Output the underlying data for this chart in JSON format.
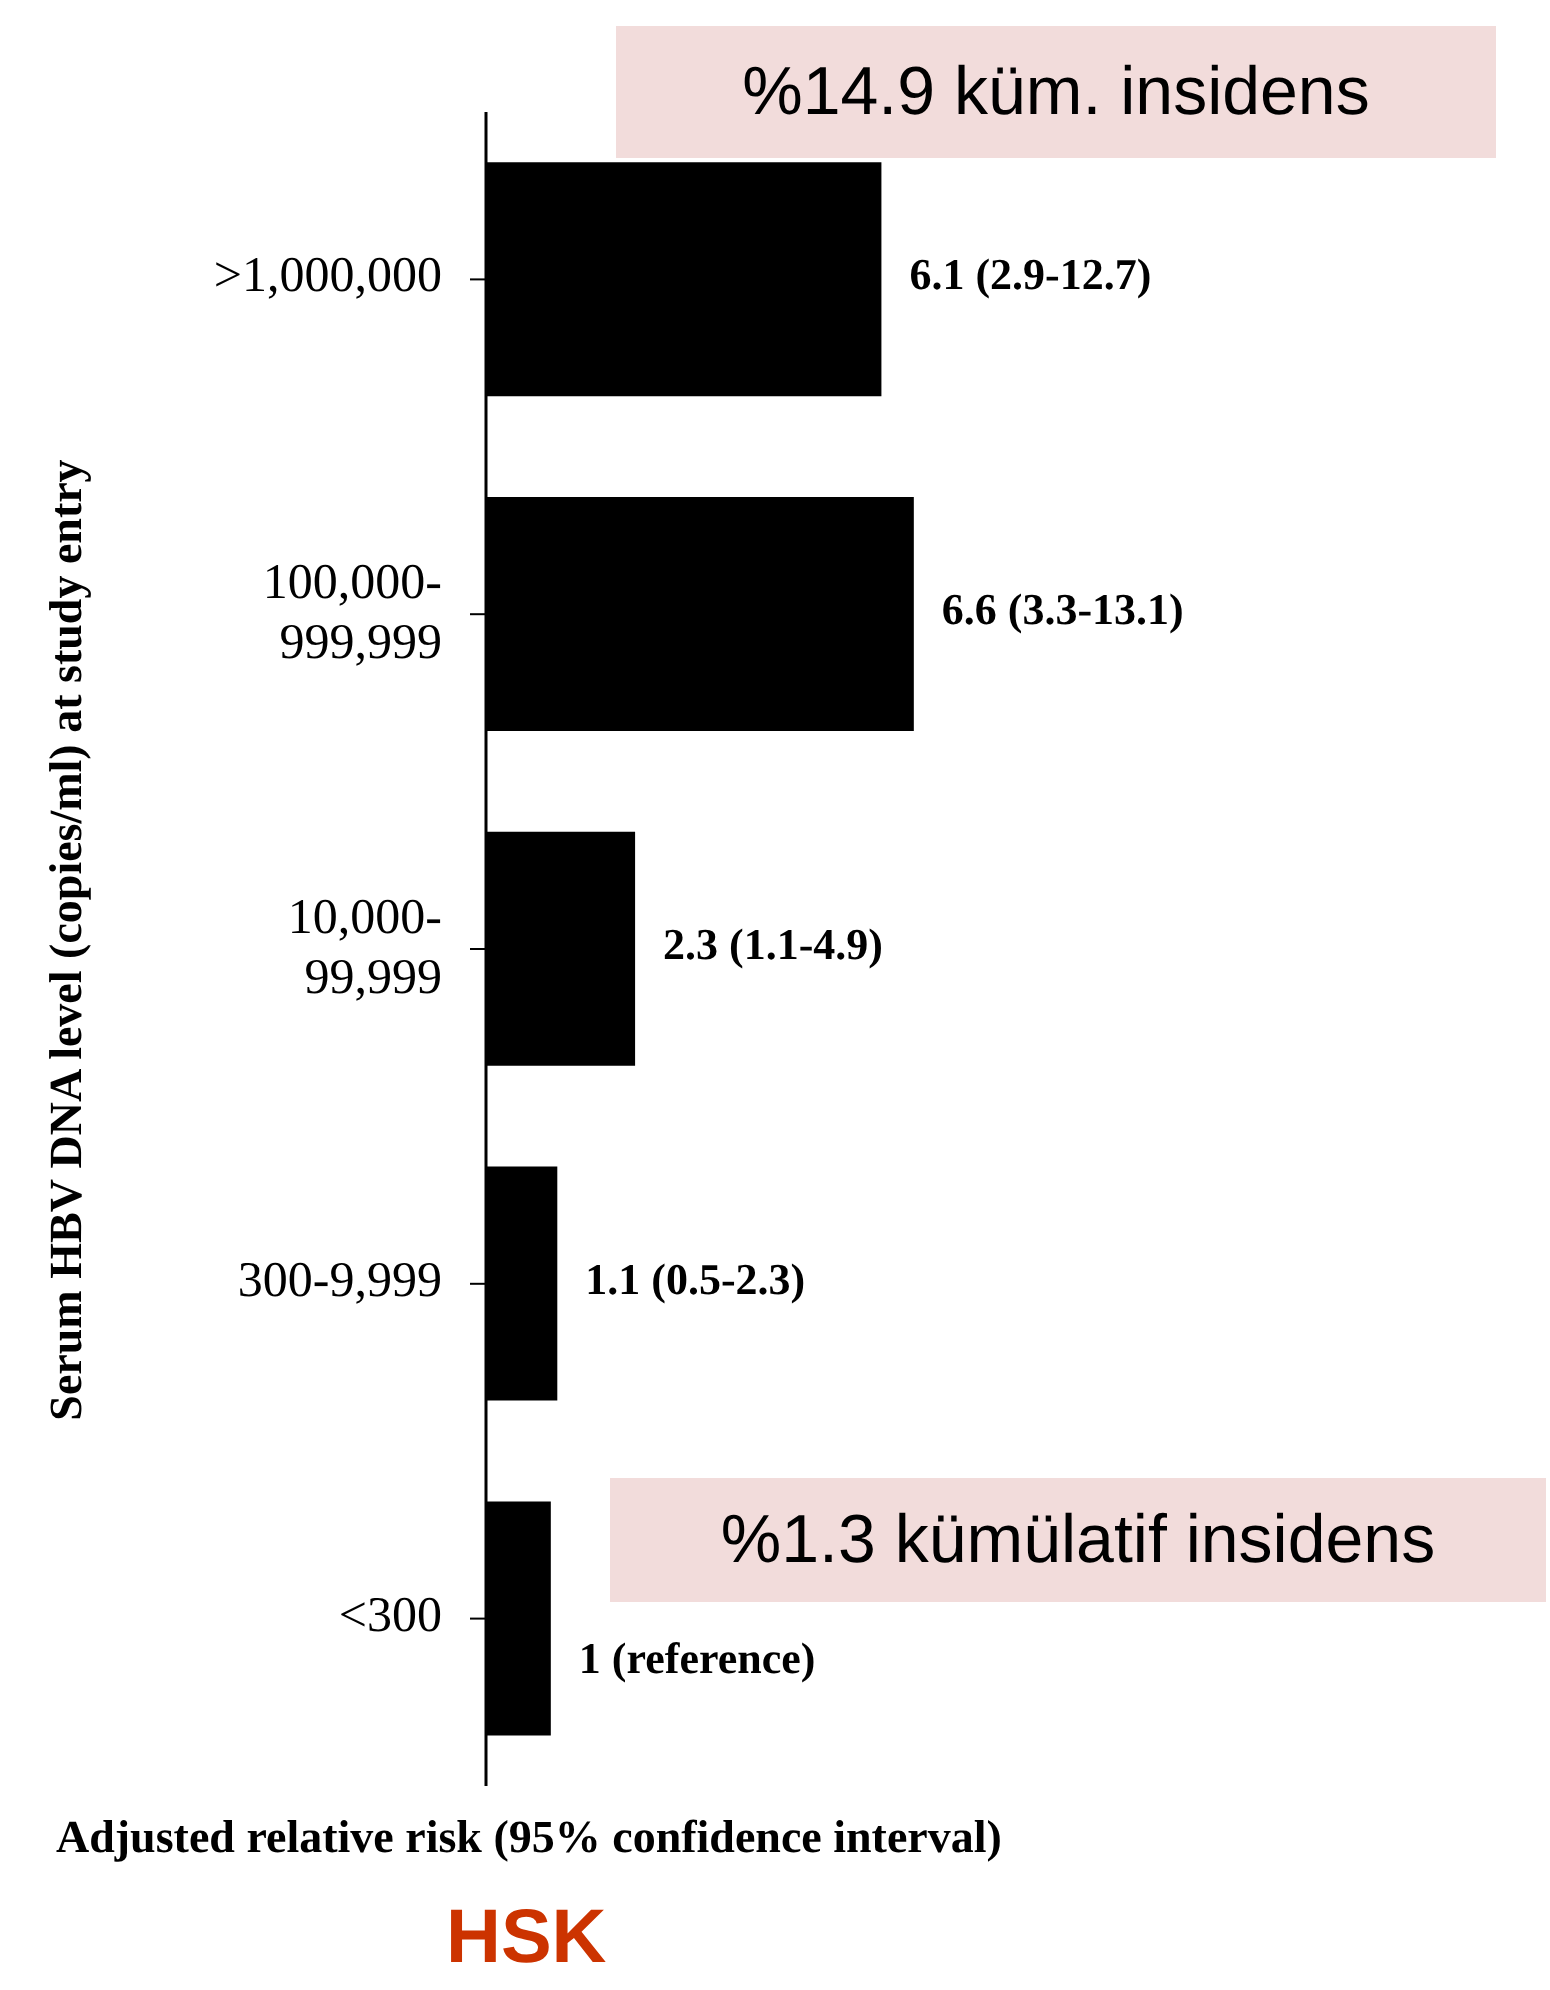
{
  "chart_data": {
    "type": "bar",
    "orientation": "horizontal",
    "xlabel": "Adjusted relative risk (95% confidence interval)",
    "ylabel": "Serum HBV DNA level (copies/ml) at study entry",
    "categories": [
      ">1,000,000",
      "100,000-999,999",
      "10,000-99,999",
      "300-9,999",
      "<300"
    ],
    "values": [
      6.1,
      6.6,
      2.3,
      1.1,
      1
    ],
    "value_labels": [
      "6.1 (2.9-12.7)",
      "6.6 (3.3-13.1)",
      "2.3 (1.1-4.9)",
      "1.1 (0.5-2.3)",
      "1 (reference)"
    ],
    "color": "#000000",
    "annotations": [
      "%14.9 küm. insidens",
      "%1.3 kümülatif insidens",
      "HSK"
    ]
  }
}
